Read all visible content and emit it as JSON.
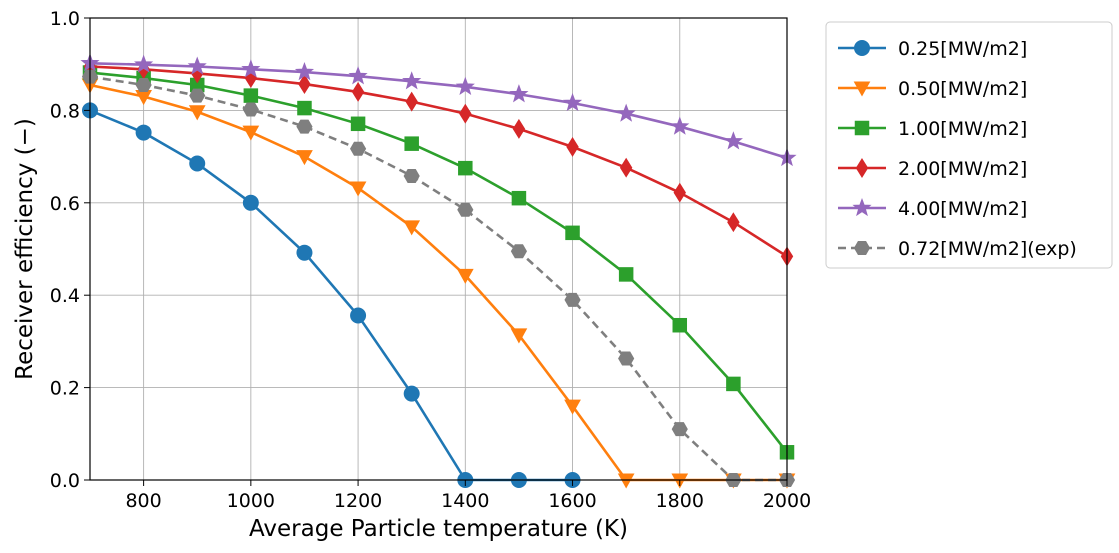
{
  "chart_data": {
    "type": "line",
    "xlabel": "Average Particle temperature (K)",
    "ylabel": "Receiver efficiency (−)",
    "xlim": [
      700,
      2000
    ],
    "ylim": [
      0,
      1.0
    ],
    "x_ticks": [
      "800",
      "1000",
      "1200",
      "1400",
      "1600",
      "1800",
      "2000"
    ],
    "y_ticks": [
      "0.0",
      "0.2",
      "0.4",
      "0.6",
      "0.8",
      "1.0"
    ],
    "grid": true,
    "legend_position": "outside-right-top",
    "x": [
      700,
      800,
      900,
      1000,
      1100,
      1200,
      1300,
      1400,
      1500,
      1600,
      1700,
      1800,
      1900,
      2000
    ],
    "series": [
      {
        "name": "0.25[MW/m2]",
        "color": "#1f77b4",
        "marker": "circle",
        "dash": "solid",
        "values": [
          0.8,
          0.752,
          0.685,
          0.6,
          0.492,
          0.356,
          0.187,
          0.0,
          0.0,
          0.0,
          null,
          null,
          null,
          null
        ]
      },
      {
        "name": "0.50[MW/m2]",
        "color": "#ff7f0e",
        "marker": "triangle-down",
        "dash": "solid",
        "values": [
          0.855,
          0.83,
          0.797,
          0.753,
          0.7,
          0.632,
          0.548,
          0.443,
          0.314,
          0.16,
          0.0,
          0.0,
          0.0,
          0.0
        ]
      },
      {
        "name": "1.00[MW/m2]",
        "color": "#2ca02c",
        "marker": "square",
        "dash": "solid",
        "values": [
          0.882,
          0.87,
          0.855,
          0.832,
          0.805,
          0.771,
          0.728,
          0.675,
          0.61,
          0.535,
          0.445,
          0.335,
          0.208,
          0.06
        ]
      },
      {
        "name": "2.00[MW/m2]",
        "color": "#d62728",
        "marker": "diamond",
        "dash": "solid",
        "values": [
          0.895,
          0.889,
          0.88,
          0.87,
          0.857,
          0.84,
          0.819,
          0.793,
          0.76,
          0.721,
          0.676,
          0.622,
          0.558,
          0.484
        ]
      },
      {
        "name": "4.00[MW/m2]",
        "color": "#9467bd",
        "marker": "star",
        "dash": "solid",
        "values": [
          0.902,
          0.899,
          0.895,
          0.889,
          0.883,
          0.874,
          0.863,
          0.851,
          0.835,
          0.816,
          0.793,
          0.765,
          0.733,
          0.697
        ]
      },
      {
        "name": "0.72[MW/m2](exp)",
        "color": "#7f7f7f",
        "marker": "hexagon",
        "dash": "dashed",
        "values": [
          0.873,
          0.855,
          0.832,
          0.802,
          0.765,
          0.717,
          0.658,
          0.585,
          0.495,
          0.39,
          0.263,
          0.11,
          0.0,
          0.0
        ]
      }
    ]
  }
}
